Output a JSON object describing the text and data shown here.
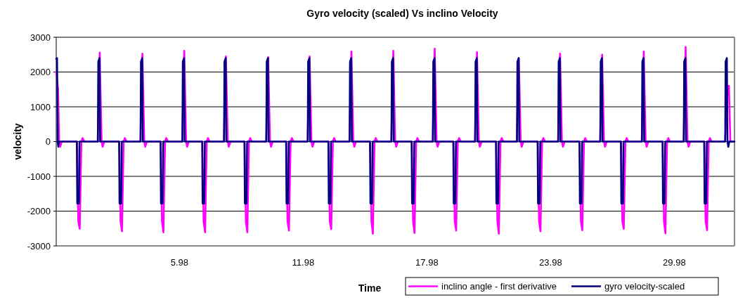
{
  "chart_data": {
    "type": "line",
    "title": "Gyro velocity (scaled) Vs inclino Velocity",
    "xlabel": "Time",
    "ylabel": "velocity",
    "xlim": [
      0,
      32.9
    ],
    "xticks": [
      5.98,
      11.98,
      17.98,
      23.98,
      29.98
    ],
    "ylim": [
      -3000,
      3000
    ],
    "yticks": [
      -3000,
      -2000,
      -1000,
      0,
      1000,
      2000,
      3000
    ],
    "grid": "y",
    "legend": "bottom right",
    "line_style": "solid",
    "marker": "none",
    "series": [
      {
        "name": "inclino angle - first derivative",
        "color": "#ff00ff",
        "x": [
          0,
          0.09,
          0.14,
          0.19,
          0.27,
          1.01,
          1.07,
          1.14,
          1.22,
          1.28,
          1.36,
          2.01,
          2.11,
          2.2,
          2.25,
          2.33,
          3.06,
          3.12,
          3.19,
          3.27,
          3.33,
          3.41,
          4.08,
          4.18,
          4.27,
          4.32,
          4.4,
          5.07,
          5.13,
          5.2,
          5.28,
          5.34,
          5.42,
          6.11,
          6.21,
          6.3,
          6.35,
          6.43,
          7.09,
          7.15,
          7.22,
          7.3,
          7.36,
          7.44,
          8.13,
          8.23,
          8.32,
          8.37,
          8.45,
          9.14,
          9.2,
          9.27,
          9.35,
          9.41,
          9.49,
          10.18,
          10.28,
          10.37,
          10.42,
          10.5,
          11.16,
          11.22,
          11.29,
          11.37,
          11.43,
          11.51,
          12.19,
          12.29,
          12.38,
          12.43,
          12.51,
          13.21,
          13.27,
          13.34,
          13.42,
          13.48,
          13.56,
          14.22,
          14.32,
          14.41,
          14.46,
          14.54,
          15.23,
          15.29,
          15.36,
          15.44,
          15.5,
          15.58,
          16.25,
          16.35,
          16.44,
          16.49,
          16.57,
          17.25,
          17.31,
          17.38,
          17.46,
          17.52,
          17.6,
          18.26,
          18.36,
          18.45,
          18.5,
          18.58,
          19.27,
          19.33,
          19.4,
          19.48,
          19.54,
          19.62,
          20.31,
          20.41,
          20.5,
          20.55,
          20.63,
          21.34,
          21.4,
          21.47,
          21.55,
          21.61,
          21.69,
          22.34,
          22.44,
          22.53,
          22.58,
          22.66,
          23.36,
          23.42,
          23.49,
          23.57,
          23.63,
          23.71,
          24.34,
          24.44,
          24.53,
          24.58,
          24.66,
          25.39,
          25.45,
          25.52,
          25.6,
          25.66,
          25.74,
          26.38,
          26.48,
          26.57,
          26.62,
          26.7,
          27.4,
          27.46,
          27.53,
          27.61,
          27.67,
          27.75,
          28.4,
          28.5,
          28.59,
          28.64,
          28.72,
          29.42,
          29.48,
          29.55,
          29.63,
          29.69,
          29.77,
          30.43,
          30.53,
          30.62,
          30.67,
          30.75,
          31.44,
          31.5,
          31.57,
          31.65,
          31.71,
          31.79,
          32.44,
          32.58,
          32.63,
          32.7,
          32.9
        ],
        "values": [
          2000,
          1500,
          0,
          -150,
          0,
          0,
          -2300,
          -2510,
          0,
          100,
          0,
          0,
          2560,
          0,
          -150,
          0,
          0,
          -2300,
          -2580,
          0,
          100,
          0,
          0,
          2530,
          0,
          -150,
          0,
          0,
          -2300,
          -2610,
          0,
          100,
          0,
          0,
          2610,
          0,
          -150,
          0,
          0,
          -2300,
          -2610,
          0,
          100,
          0,
          0,
          2450,
          0,
          -150,
          0,
          0,
          -2300,
          -2610,
          0,
          100,
          0,
          0,
          2430,
          0,
          -150,
          0,
          0,
          -2300,
          -2560,
          0,
          100,
          0,
          0,
          2450,
          0,
          -150,
          0,
          0,
          -2300,
          -2520,
          0,
          100,
          0,
          0,
          2590,
          0,
          -150,
          0,
          0,
          -2300,
          -2650,
          0,
          100,
          0,
          0,
          2610,
          0,
          -150,
          0,
          0,
          -2300,
          -2630,
          0,
          100,
          0,
          0,
          2670,
          0,
          -150,
          0,
          0,
          -2300,
          -2560,
          0,
          100,
          0,
          0,
          2570,
          0,
          -150,
          0,
          0,
          -2300,
          -2650,
          0,
          100,
          0,
          0,
          2400,
          0,
          -150,
          0,
          0,
          -2300,
          -2580,
          0,
          100,
          0,
          0,
          2530,
          0,
          -150,
          0,
          0,
          -2300,
          -2550,
          0,
          100,
          0,
          0,
          2500,
          0,
          -150,
          0,
          0,
          -2300,
          -2510,
          0,
          100,
          0,
          0,
          2590,
          0,
          -150,
          0,
          0,
          -2300,
          -2640,
          0,
          100,
          0,
          0,
          2720,
          0,
          -150,
          0,
          0,
          -2300,
          -2550,
          0,
          100,
          0,
          0,
          1600,
          1600,
          0,
          0
        ]
      },
      {
        "name": "gyro velocity-scaled",
        "color": "#000080",
        "x": [
          0,
          0.04,
          0.07,
          0.1,
          0.14,
          1.0,
          1.02,
          1.1,
          1.13,
          2.02,
          2.04,
          2.1,
          2.13,
          3.05,
          3.07,
          3.15,
          3.18,
          4.09,
          4.11,
          4.17,
          4.2,
          5.06,
          5.08,
          5.16,
          5.19,
          6.12,
          6.14,
          6.2,
          6.23,
          7.08,
          7.1,
          7.18,
          7.21,
          8.14,
          8.16,
          8.22,
          8.25,
          9.13,
          9.15,
          9.23,
          9.26,
          10.19,
          10.21,
          10.27,
          10.3,
          11.15,
          11.17,
          11.25,
          11.28,
          12.2,
          12.22,
          12.28,
          12.31,
          13.2,
          13.22,
          13.3,
          13.33,
          14.23,
          14.25,
          14.31,
          14.34,
          15.22,
          15.24,
          15.32,
          15.35,
          16.26,
          16.28,
          16.34,
          16.37,
          17.24,
          17.26,
          17.34,
          17.37,
          18.27,
          18.29,
          18.35,
          18.38,
          19.26,
          19.28,
          19.36,
          19.39,
          20.32,
          20.34,
          20.4,
          20.43,
          21.33,
          21.35,
          21.43,
          21.46,
          22.35,
          22.37,
          22.43,
          22.46,
          23.35,
          23.37,
          23.45,
          23.48,
          24.35,
          24.37,
          24.43,
          24.46,
          25.38,
          25.4,
          25.48,
          25.51,
          26.39,
          26.41,
          26.47,
          26.5,
          27.39,
          27.41,
          27.49,
          27.52,
          28.41,
          28.43,
          28.49,
          28.52,
          29.41,
          29.43,
          29.51,
          29.54,
          30.44,
          30.46,
          30.52,
          30.55,
          31.43,
          31.45,
          31.53,
          31.56,
          32.45,
          32.47,
          32.53,
          32.56,
          32.6,
          32.65,
          32.9
        ],
        "values": [
          2380,
          2400,
          0,
          -150,
          0,
          0,
          -1780,
          -1780,
          0,
          0,
          2300,
          2400,
          0,
          0,
          -1780,
          -1780,
          0,
          0,
          2300,
          2400,
          0,
          0,
          -1780,
          -1780,
          0,
          0,
          2300,
          2400,
          0,
          0,
          -1780,
          -1780,
          0,
          0,
          2300,
          2400,
          0,
          0,
          -1780,
          -1780,
          0,
          0,
          2300,
          2400,
          0,
          0,
          -1780,
          -1780,
          0,
          0,
          2300,
          2400,
          0,
          0,
          -1780,
          -1780,
          0,
          0,
          2300,
          2400,
          0,
          0,
          -1780,
          -1780,
          0,
          0,
          2300,
          2400,
          0,
          0,
          -1780,
          -1780,
          0,
          0,
          2300,
          2400,
          0,
          0,
          -1780,
          -1780,
          0,
          0,
          2300,
          2400,
          0,
          0,
          -1780,
          -1780,
          0,
          0,
          2300,
          2400,
          0,
          0,
          -1780,
          -1780,
          0,
          0,
          2300,
          2400,
          0,
          0,
          -1780,
          -1780,
          0,
          0,
          2300,
          2400,
          0,
          0,
          -1780,
          -1780,
          0,
          0,
          2300,
          2400,
          0,
          0,
          -1780,
          -1780,
          0,
          0,
          2300,
          2400,
          0,
          0,
          -1780,
          -1780,
          0,
          0,
          2300,
          2400,
          0,
          -150,
          0,
          0
        ]
      }
    ]
  }
}
